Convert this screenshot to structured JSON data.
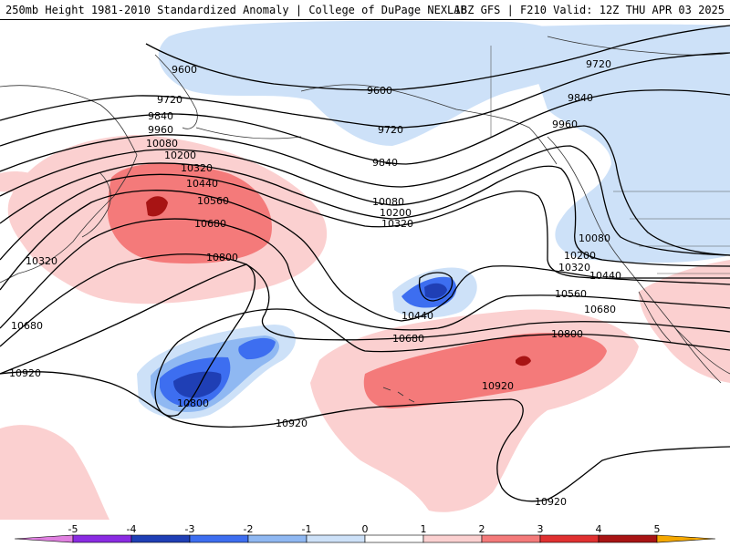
{
  "header": {
    "left": "250mb Height 1981-2010 Standardized Anomaly | College of DuPage NEXLAB",
    "right": "18Z GFS | F210 Valid: 12Z THU APR 03 2025"
  },
  "colors": {
    "neg5": "#e080e0",
    "neg4": "#8a2be2",
    "neg3": "#1f3fb5",
    "neg2": "#3d6ef0",
    "neg1_5": "#8fb8f2",
    "neg1": "#cde1f8",
    "pos1": "#fbd0d0",
    "pos2": "#f47a7a",
    "pos3": "#e03030",
    "pos4": "#a81414",
    "pos5": "#f5a800",
    "contour": "#000000",
    "coast": "#333333"
  },
  "contour_labels": [
    {
      "id": "9600a",
      "text": "9600"
    },
    {
      "id": "9600b",
      "text": "9600"
    },
    {
      "id": "9720a",
      "text": "9720"
    },
    {
      "id": "9720b",
      "text": "9720"
    },
    {
      "id": "9720c",
      "text": "9720"
    },
    {
      "id": "9840a",
      "text": "9840"
    },
    {
      "id": "9840b",
      "text": "9840"
    },
    {
      "id": "9840c",
      "text": "9840"
    },
    {
      "id": "9960a",
      "text": "9960"
    },
    {
      "id": "9960b",
      "text": "9960"
    },
    {
      "id": "10080a",
      "text": "10080"
    },
    {
      "id": "10080b",
      "text": "10080"
    },
    {
      "id": "10080c",
      "text": "10080"
    },
    {
      "id": "10200a",
      "text": "10200"
    },
    {
      "id": "10200b",
      "text": "10200"
    },
    {
      "id": "10200c",
      "text": "10200"
    },
    {
      "id": "10320a",
      "text": "10320"
    },
    {
      "id": "10320b",
      "text": "10320"
    },
    {
      "id": "10320c",
      "text": "10320"
    },
    {
      "id": "10320d",
      "text": "10320"
    },
    {
      "id": "10440a",
      "text": "10440"
    },
    {
      "id": "10440b",
      "text": "10440"
    },
    {
      "id": "10440c",
      "text": "10440"
    },
    {
      "id": "10560a",
      "text": "10560"
    },
    {
      "id": "10560b",
      "text": "10560"
    },
    {
      "id": "10680a",
      "text": "10680"
    },
    {
      "id": "10680b",
      "text": "10680"
    },
    {
      "id": "10680c",
      "text": "10680"
    },
    {
      "id": "10680d",
      "text": "10680"
    },
    {
      "id": "10800a",
      "text": "10800"
    },
    {
      "id": "10800b",
      "text": "10800"
    },
    {
      "id": "10800c",
      "text": "10800"
    },
    {
      "id": "10920a",
      "text": "10920"
    },
    {
      "id": "10920b",
      "text": "10920"
    },
    {
      "id": "10920c",
      "text": "10920"
    },
    {
      "id": "10920d",
      "text": "10920"
    }
  ],
  "colorbar": {
    "ticks": [
      "-5",
      "-4",
      "-3",
      "-2",
      "-1",
      "0",
      "1",
      "2",
      "3",
      "4",
      "5"
    ]
  }
}
